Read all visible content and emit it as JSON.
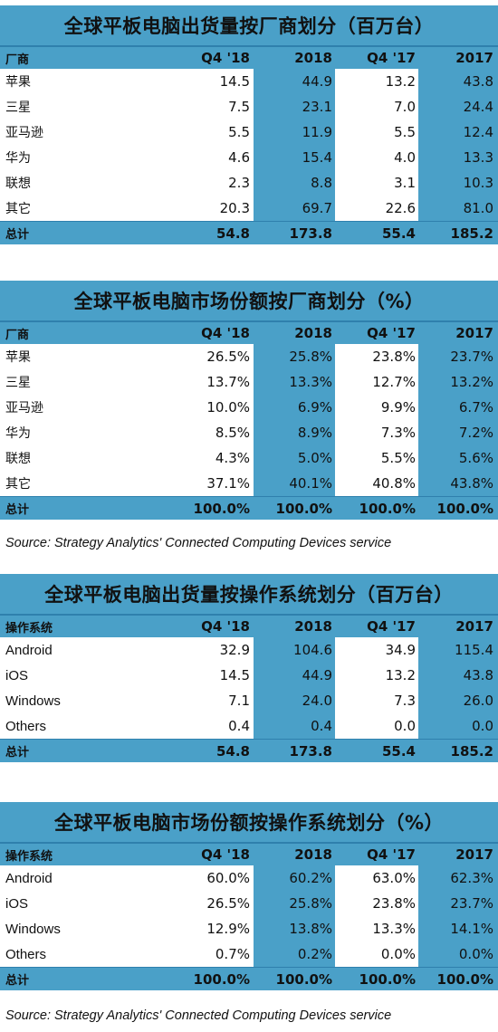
{
  "tables": [
    {
      "title": "全球平板电脑出货量按厂商划分（百万台）",
      "headers": [
        "厂商",
        "Q4 '18",
        "2018",
        "Q4 '17",
        "2017"
      ],
      "rows": [
        [
          "苹果",
          "14.5",
          "44.9",
          "13.2",
          "43.8"
        ],
        [
          "三星",
          "7.5",
          "23.1",
          "7.0",
          "24.4"
        ],
        [
          "亚马逊",
          "5.5",
          "11.9",
          "5.5",
          "12.4"
        ],
        [
          "华为",
          "4.6",
          "15.4",
          "4.0",
          "13.3"
        ],
        [
          "联想",
          "2.3",
          "8.8",
          "3.1",
          "10.3"
        ],
        [
          "其它",
          "20.3",
          "69.7",
          "22.6",
          "81.0"
        ]
      ],
      "total": [
        "总计",
        "54.8",
        "173.8",
        "55.4",
        "185.2"
      ]
    },
    {
      "title": "全球平板电脑市场份额按厂商划分（%）",
      "headers": [
        "厂商",
        "Q4 '18",
        "2018",
        "Q4 '17",
        "2017"
      ],
      "rows": [
        [
          "苹果",
          "26.5%",
          "25.8%",
          "23.8%",
          "23.7%"
        ],
        [
          "三星",
          "13.7%",
          "13.3%",
          "12.7%",
          "13.2%"
        ],
        [
          "亚马逊",
          "10.0%",
          "6.9%",
          "9.9%",
          "6.7%"
        ],
        [
          "华为",
          "8.5%",
          "8.9%",
          "7.3%",
          "7.2%"
        ],
        [
          "联想",
          "4.3%",
          "5.0%",
          "5.5%",
          "5.6%"
        ],
        [
          "其它",
          "37.1%",
          "40.1%",
          "40.8%",
          "43.8%"
        ]
      ],
      "total": [
        "总计",
        "100.0%",
        "100.0%",
        "100.0%",
        "100.0%"
      ],
      "source": "Source: Strategy Analytics' Connected Computing Devices service"
    },
    {
      "title": "全球平板电脑出货量按操作系统划分（百万台）",
      "headers": [
        "操作系统",
        "Q4 '18",
        "2018",
        "Q4 '17",
        "2017"
      ],
      "rows": [
        [
          "Android",
          "32.9",
          "104.6",
          "34.9",
          "115.4"
        ],
        [
          "iOS",
          "14.5",
          "44.9",
          "13.2",
          "43.8"
        ],
        [
          "Windows",
          "7.1",
          "24.0",
          "7.3",
          "26.0"
        ],
        [
          "Others",
          "0.4",
          "0.4",
          "0.0",
          "0.0"
        ]
      ],
      "total": [
        "总计",
        "54.8",
        "173.8",
        "55.4",
        "185.2"
      ]
    },
    {
      "title": "全球平板电脑市场份额按操作系统划分（%）",
      "headers": [
        "操作系统",
        "Q4 '18",
        "2018",
        "Q4 '17",
        "2017"
      ],
      "rows": [
        [
          "Android",
          "60.0%",
          "60.2%",
          "63.0%",
          "62.3%"
        ],
        [
          "iOS",
          "26.5%",
          "25.8%",
          "23.8%",
          "23.7%"
        ],
        [
          "Windows",
          "12.9%",
          "13.8%",
          "13.3%",
          "14.1%"
        ],
        [
          "Others",
          "0.7%",
          "0.2%",
          "0.0%",
          "0.0%"
        ]
      ],
      "total": [
        "总计",
        "100.0%",
        "100.0%",
        "100.0%",
        "100.0%"
      ],
      "source": "Source: Strategy Analytics' Connected Computing Devices service"
    }
  ],
  "colors": {
    "header_blue": "#4aa0c8",
    "row_white": "#ffffff",
    "rule": "#2f80ad"
  }
}
